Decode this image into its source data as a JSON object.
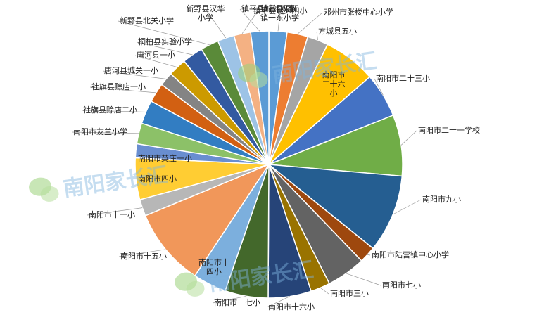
{
  "chart_data": {
    "type": "pie",
    "title": "",
    "categories": [
      "镇平县城郊四小",
      "邓州市张楼中心小学",
      "方城县五小",
      "南阳市二十六小",
      "南阳市二十三小",
      "南阳市二十一学校",
      "南阳市九小",
      "南阳市陆营镇中心小学",
      "南阳市七小",
      "南阳市三小",
      "南阳市十六小",
      "南阳市十七小",
      "南阳市十四小",
      "南阳市十五小",
      "南阳市十一小",
      "南阳市四小",
      "南阳市英庄一小",
      "南阳市友兰小学",
      "社旗县赊店二小",
      "社旗县赊店一小",
      "唐河县城关一小",
      "唐河县一小",
      "桐柏县实验小学",
      "新野县北关小学",
      "新野县汉华小学",
      "镇平县涅阳镇十东小学",
      "镇平县城郊四小"
    ],
    "values": [
      1.3,
      1.5,
      1.5,
      3.8,
      3.2,
      4.4,
      5.6,
      1.2,
      2.8,
      1.4,
      3.1,
      3.1,
      2.4,
      5.6,
      1.2,
      3.0,
      1.0,
      1.5,
      1.7,
      1.4,
      1.0,
      1.3,
      1.5,
      1.3,
      1.2,
      1.2,
      1.3
    ],
    "colors": [
      "#5b9bd5",
      "#ed7d31",
      "#a5a5a5",
      "#ffc000",
      "#4472c4",
      "#70ad47",
      "#255e91",
      "#9e480e",
      "#636363",
      "#997300",
      "#264478",
      "#43682b",
      "#7cafdd",
      "#f1975a",
      "#b7b7b7",
      "#ffcd33",
      "#698ed0",
      "#8cc168",
      "#327dc2",
      "#d26012",
      "#848484",
      "#cc9a00",
      "#335aa1",
      "#5a8a39",
      "#9dc3e6",
      "#f4b183",
      "#5b9bd5"
    ],
    "legend": "none",
    "start_angle_deg": 0
  },
  "watermark": {
    "text": "南阳家长汇",
    "color": "#7fb5e0"
  }
}
